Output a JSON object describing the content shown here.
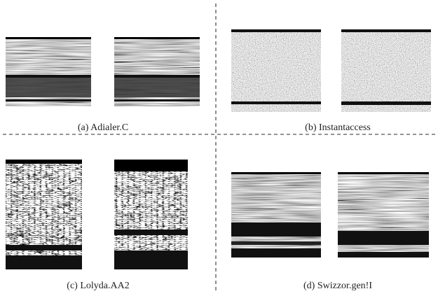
{
  "panels": [
    {
      "caption": "(a)  Adialer.C"
    },
    {
      "caption": "(b)  Instantaccess"
    },
    {
      "caption": "(c)  Lolyda.AA2"
    },
    {
      "caption": "(d)  Swizzor.gen!I"
    }
  ]
}
